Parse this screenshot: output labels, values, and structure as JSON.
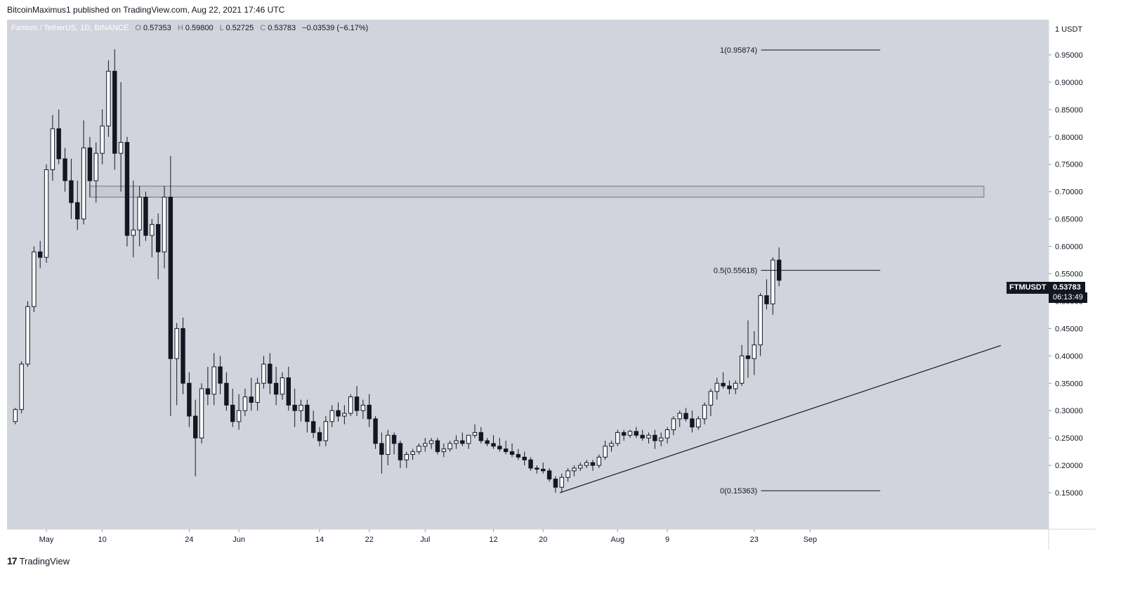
{
  "header": {
    "published_text": "BitcoinMaximus1 published on TradingView.com, Aug 22, 2021 17:46 UTC"
  },
  "legend": {
    "title": "Fantom / TetherUS, 1D, BINANCE",
    "o_key": "O",
    "o_val": "0.57353",
    "h_key": "H",
    "h_val": "0.59800",
    "l_key": "L",
    "l_val": "0.52725",
    "c_key": "C",
    "c_val": "0.53783",
    "change": "−0.03539 (−6.17%)"
  },
  "price_badge": {
    "symbol": "FTMUSDT",
    "price": "0.53783",
    "countdown": "06:13:49"
  },
  "footer": {
    "logo_glyph": "17",
    "brand": "TradingView"
  },
  "colors": {
    "background": "#d1d4dc",
    "bull_body": "#ffffff",
    "bear_body": "#131722",
    "wick": "#131722",
    "zone_fill": "#c8cad0",
    "zone_stroke": "#6f7480"
  },
  "chart_data": {
    "type": "candlestick",
    "title": "Fantom / TetherUS, 1D, BINANCE",
    "y_axis_unit": "1 USDT",
    "ylim": [
      0.1,
      1.0
    ],
    "y_ticks": [
      "0.15000",
      "0.20000",
      "0.25000",
      "0.30000",
      "0.35000",
      "0.40000",
      "0.45000",
      "0.50000",
      "0.55000",
      "0.60000",
      "0.65000",
      "0.70000",
      "0.75000",
      "0.80000",
      "0.85000",
      "0.90000",
      "0.95000"
    ],
    "x_ticks": [
      {
        "label": "May",
        "day": 6
      },
      {
        "label": "10",
        "day": 15
      },
      {
        "label": "24",
        "day": 29
      },
      {
        "label": "Jun",
        "day": 37
      },
      {
        "label": "14",
        "day": 50
      },
      {
        "label": "22",
        "day": 58
      },
      {
        "label": "Jul",
        "day": 67
      },
      {
        "label": "12",
        "day": 78
      },
      {
        "label": "20",
        "day": 86
      },
      {
        "label": "Aug",
        "day": 98
      },
      {
        "label": "9",
        "day": 106
      },
      {
        "label": "23",
        "day": 120
      },
      {
        "label": "Sep",
        "day": 129
      }
    ],
    "candles": [
      [
        0.28,
        0.305,
        0.275,
        0.302
      ],
      [
        0.302,
        0.39,
        0.295,
        0.385
      ],
      [
        0.385,
        0.5,
        0.38,
        0.49
      ],
      [
        0.49,
        0.6,
        0.48,
        0.59
      ],
      [
        0.59,
        0.61,
        0.56,
        0.58
      ],
      [
        0.58,
        0.75,
        0.57,
        0.74
      ],
      [
        0.74,
        0.84,
        0.72,
        0.815
      ],
      [
        0.815,
        0.85,
        0.75,
        0.76
      ],
      [
        0.76,
        0.78,
        0.7,
        0.72
      ],
      [
        0.72,
        0.76,
        0.65,
        0.68
      ],
      [
        0.68,
        0.72,
        0.63,
        0.65
      ],
      [
        0.65,
        0.83,
        0.64,
        0.78
      ],
      [
        0.78,
        0.8,
        0.69,
        0.72
      ],
      [
        0.72,
        0.79,
        0.68,
        0.77
      ],
      [
        0.77,
        0.85,
        0.75,
        0.82
      ],
      [
        0.82,
        0.94,
        0.8,
        0.92
      ],
      [
        0.92,
        0.96,
        0.74,
        0.77
      ],
      [
        0.77,
        0.9,
        0.7,
        0.79
      ],
      [
        0.79,
        0.8,
        0.6,
        0.62
      ],
      [
        0.62,
        0.72,
        0.58,
        0.63
      ],
      [
        0.63,
        0.71,
        0.6,
        0.69
      ],
      [
        0.69,
        0.7,
        0.61,
        0.62
      ],
      [
        0.62,
        0.65,
        0.58,
        0.64
      ],
      [
        0.64,
        0.66,
        0.54,
        0.59
      ],
      [
        0.59,
        0.71,
        0.56,
        0.69
      ],
      [
        0.69,
        0.765,
        0.29,
        0.395
      ],
      [
        0.395,
        0.46,
        0.31,
        0.45
      ],
      [
        0.45,
        0.47,
        0.33,
        0.35
      ],
      [
        0.35,
        0.37,
        0.27,
        0.29
      ],
      [
        0.29,
        0.32,
        0.18,
        0.25
      ],
      [
        0.25,
        0.35,
        0.24,
        0.34
      ],
      [
        0.34,
        0.38,
        0.31,
        0.33
      ],
      [
        0.33,
        0.405,
        0.31,
        0.38
      ],
      [
        0.38,
        0.4,
        0.33,
        0.35
      ],
      [
        0.35,
        0.37,
        0.3,
        0.31
      ],
      [
        0.31,
        0.34,
        0.27,
        0.28
      ],
      [
        0.28,
        0.33,
        0.265,
        0.3
      ],
      [
        0.3,
        0.34,
        0.29,
        0.325
      ],
      [
        0.325,
        0.36,
        0.3,
        0.315
      ],
      [
        0.315,
        0.36,
        0.3,
        0.35
      ],
      [
        0.35,
        0.4,
        0.34,
        0.385
      ],
      [
        0.385,
        0.405,
        0.33,
        0.35
      ],
      [
        0.35,
        0.38,
        0.31,
        0.33
      ],
      [
        0.33,
        0.37,
        0.32,
        0.36
      ],
      [
        0.36,
        0.38,
        0.3,
        0.31
      ],
      [
        0.31,
        0.34,
        0.27,
        0.3
      ],
      [
        0.3,
        0.32,
        0.28,
        0.31
      ],
      [
        0.31,
        0.32,
        0.26,
        0.28
      ],
      [
        0.28,
        0.3,
        0.25,
        0.26
      ],
      [
        0.26,
        0.27,
        0.235,
        0.245
      ],
      [
        0.245,
        0.29,
        0.235,
        0.28
      ],
      [
        0.28,
        0.31,
        0.27,
        0.3
      ],
      [
        0.3,
        0.315,
        0.28,
        0.29
      ],
      [
        0.29,
        0.31,
        0.275,
        0.295
      ],
      [
        0.295,
        0.33,
        0.29,
        0.325
      ],
      [
        0.325,
        0.345,
        0.29,
        0.3
      ],
      [
        0.3,
        0.32,
        0.285,
        0.31
      ],
      [
        0.31,
        0.33,
        0.27,
        0.285
      ],
      [
        0.285,
        0.29,
        0.23,
        0.24
      ],
      [
        0.24,
        0.26,
        0.185,
        0.22
      ],
      [
        0.22,
        0.265,
        0.2,
        0.255
      ],
      [
        0.255,
        0.26,
        0.22,
        0.24
      ],
      [
        0.24,
        0.245,
        0.195,
        0.21
      ],
      [
        0.21,
        0.225,
        0.195,
        0.22
      ],
      [
        0.22,
        0.23,
        0.21,
        0.225
      ],
      [
        0.225,
        0.24,
        0.22,
        0.235
      ],
      [
        0.235,
        0.25,
        0.225,
        0.24
      ],
      [
        0.24,
        0.25,
        0.23,
        0.245
      ],
      [
        0.245,
        0.25,
        0.22,
        0.225
      ],
      [
        0.225,
        0.24,
        0.215,
        0.23
      ],
      [
        0.23,
        0.245,
        0.225,
        0.24
      ],
      [
        0.24,
        0.255,
        0.23,
        0.245
      ],
      [
        0.245,
        0.26,
        0.235,
        0.24
      ],
      [
        0.24,
        0.255,
        0.23,
        0.255
      ],
      [
        0.255,
        0.275,
        0.25,
        0.26
      ],
      [
        0.26,
        0.27,
        0.24,
        0.245
      ],
      [
        0.245,
        0.25,
        0.235,
        0.24
      ],
      [
        0.24,
        0.255,
        0.23,
        0.235
      ],
      [
        0.235,
        0.25,
        0.225,
        0.23
      ],
      [
        0.23,
        0.245,
        0.22,
        0.225
      ],
      [
        0.225,
        0.24,
        0.215,
        0.22
      ],
      [
        0.22,
        0.23,
        0.21,
        0.215
      ],
      [
        0.215,
        0.225,
        0.2,
        0.21
      ],
      [
        0.21,
        0.215,
        0.19,
        0.195
      ],
      [
        0.195,
        0.2,
        0.185,
        0.193
      ],
      [
        0.193,
        0.205,
        0.185,
        0.19
      ],
      [
        0.19,
        0.195,
        0.17,
        0.175
      ],
      [
        0.175,
        0.18,
        0.15,
        0.16
      ],
      [
        0.16,
        0.185,
        0.15,
        0.178
      ],
      [
        0.178,
        0.195,
        0.17,
        0.19
      ],
      [
        0.19,
        0.2,
        0.18,
        0.195
      ],
      [
        0.195,
        0.205,
        0.19,
        0.2
      ],
      [
        0.2,
        0.21,
        0.195,
        0.205
      ],
      [
        0.205,
        0.21,
        0.19,
        0.2
      ],
      [
        0.2,
        0.22,
        0.195,
        0.215
      ],
      [
        0.215,
        0.245,
        0.21,
        0.235
      ],
      [
        0.235,
        0.245,
        0.225,
        0.24
      ],
      [
        0.24,
        0.265,
        0.235,
        0.26
      ],
      [
        0.26,
        0.265,
        0.245,
        0.255
      ],
      [
        0.255,
        0.265,
        0.25,
        0.262
      ],
      [
        0.262,
        0.27,
        0.25,
        0.255
      ],
      [
        0.255,
        0.265,
        0.245,
        0.25
      ],
      [
        0.25,
        0.26,
        0.24,
        0.255
      ],
      [
        0.255,
        0.265,
        0.23,
        0.245
      ],
      [
        0.245,
        0.26,
        0.235,
        0.25
      ],
      [
        0.25,
        0.27,
        0.24,
        0.265
      ],
      [
        0.265,
        0.29,
        0.255,
        0.285
      ],
      [
        0.285,
        0.3,
        0.27,
        0.295
      ],
      [
        0.295,
        0.305,
        0.28,
        0.285
      ],
      [
        0.285,
        0.3,
        0.26,
        0.27
      ],
      [
        0.27,
        0.29,
        0.265,
        0.285
      ],
      [
        0.285,
        0.315,
        0.275,
        0.31
      ],
      [
        0.31,
        0.34,
        0.29,
        0.335
      ],
      [
        0.335,
        0.36,
        0.32,
        0.35
      ],
      [
        0.35,
        0.37,
        0.34,
        0.345
      ],
      [
        0.345,
        0.355,
        0.33,
        0.34
      ],
      [
        0.34,
        0.355,
        0.33,
        0.35
      ],
      [
        0.35,
        0.42,
        0.345,
        0.4
      ],
      [
        0.4,
        0.465,
        0.36,
        0.395
      ],
      [
        0.395,
        0.445,
        0.365,
        0.42
      ],
      [
        0.42,
        0.515,
        0.4,
        0.51
      ],
      [
        0.51,
        0.54,
        0.485,
        0.495
      ],
      [
        0.495,
        0.58,
        0.475,
        0.575
      ],
      [
        0.575,
        0.598,
        0.527,
        0.538
      ]
    ],
    "fib_levels": [
      {
        "label": "1(0.95874)",
        "price": 0.95874
      },
      {
        "label": "0.5(0.55618)",
        "price": 0.55618
      },
      {
        "label": "0(0.15363)",
        "price": 0.15363
      }
    ],
    "resistance_zone": [
      0.69,
      0.71
    ],
    "support_line": [
      [
        87,
        0.15
      ],
      [
        132,
        0.419
      ]
    ]
  }
}
